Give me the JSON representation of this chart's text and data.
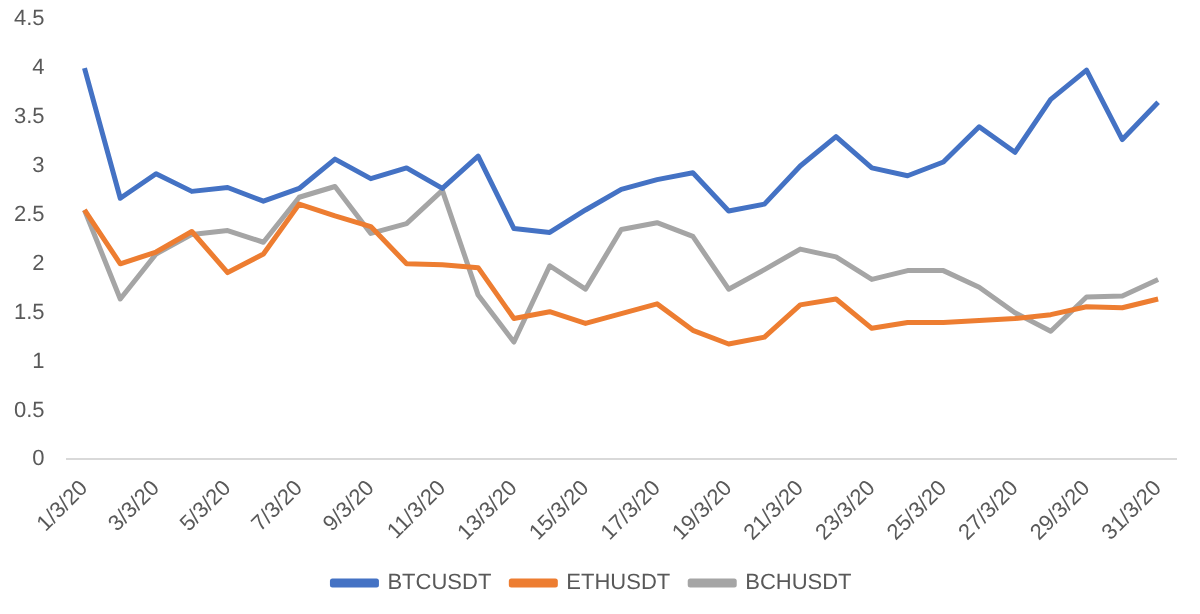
{
  "chart_data": {
    "type": "line",
    "categories": [
      "1/3/20",
      null,
      "3/3/20",
      null,
      "5/3/20",
      null,
      "7/3/20",
      null,
      "9/3/20",
      null,
      "11/3/20",
      null,
      "13/3/20",
      null,
      "15/3/20",
      null,
      "17/3/20",
      null,
      "19/3/20",
      null,
      "21/3/20",
      null,
      "23/3/20",
      null,
      "25/3/20",
      null,
      "27/3/20",
      null,
      "29/3/20",
      null,
      "31/3/20"
    ],
    "series": [
      {
        "name": "BTCUSDT",
        "color": "#4472c4",
        "values": [
          4.0,
          2.67,
          2.92,
          2.74,
          2.78,
          2.64,
          2.77,
          3.07,
          2.87,
          2.98,
          2.77,
          3.1,
          2.36,
          2.32,
          2.55,
          2.76,
          2.86,
          2.93,
          2.54,
          2.61,
          3.0,
          3.3,
          2.98,
          2.9,
          3.04,
          3.4,
          3.14,
          3.68,
          3.98,
          3.27,
          3.65
        ]
      },
      {
        "name": "ETHUSDT",
        "color": "#ed7d31",
        "values": [
          2.55,
          2.0,
          2.12,
          2.33,
          1.91,
          2.1,
          2.61,
          2.49,
          2.38,
          2.0,
          1.99,
          1.96,
          1.44,
          1.51,
          1.39,
          1.49,
          1.59,
          1.32,
          1.18,
          1.25,
          1.58,
          1.64,
          1.34,
          1.4,
          1.4,
          1.42,
          1.44,
          1.48,
          1.56,
          1.55,
          1.64
        ]
      },
      {
        "name": "BCHUSDT",
        "color": "#a5a5a5",
        "values": [
          2.55,
          1.64,
          2.1,
          2.3,
          2.34,
          2.22,
          2.68,
          2.79,
          2.31,
          2.41,
          2.75,
          1.68,
          1.2,
          1.98,
          1.74,
          2.35,
          2.42,
          2.28,
          1.74,
          1.94,
          2.15,
          2.07,
          1.84,
          1.93,
          1.93,
          1.76,
          1.5,
          1.31,
          1.66,
          1.67,
          1.84
        ]
      }
    ],
    "ylim": [
      0,
      4.5
    ],
    "yticks": [
      0,
      0.5,
      1,
      1.5,
      2,
      2.5,
      3,
      3.5,
      4,
      4.5
    ],
    "grid": false,
    "legend": "bottom",
    "marker": "none",
    "line_style": "solid"
  }
}
